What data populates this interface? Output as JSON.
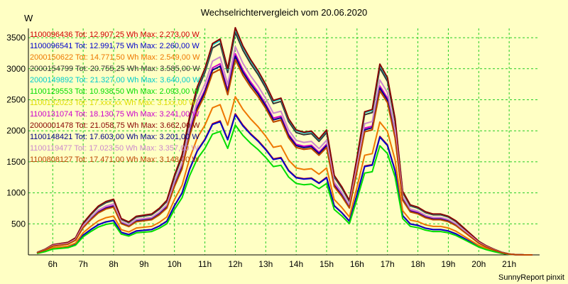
{
  "chart_data": {
    "type": "line",
    "title": "Wechselrichtervergleich vom 20.06.2020",
    "ylabel": "W",
    "footer": "SunnyReport pinxit",
    "ylim": [
      0,
      3650
    ],
    "xlim": [
      5.2,
      22.0
    ],
    "y_ticks": [
      500,
      1000,
      1500,
      2000,
      2500,
      3000,
      3500
    ],
    "x_ticks": [
      {
        "value": 6,
        "label": "6h"
      },
      {
        "value": 7,
        "label": "7h"
      },
      {
        "value": 8,
        "label": "8h"
      },
      {
        "value": 9,
        "label": "9h"
      },
      {
        "value": 10,
        "label": "10h"
      },
      {
        "value": 11,
        "label": "11h"
      },
      {
        "value": 12,
        "label": "12h"
      },
      {
        "value": 13,
        "label": "13h"
      },
      {
        "value": 14,
        "label": "14h"
      },
      {
        "value": 15,
        "label": "15h"
      },
      {
        "value": 16,
        "label": "16h"
      },
      {
        "value": 17,
        "label": "17h"
      },
      {
        "value": 18,
        "label": "18h"
      },
      {
        "value": 19,
        "label": "19h"
      },
      {
        "value": 20,
        "label": "20h"
      },
      {
        "value": 21,
        "label": "21h"
      }
    ],
    "grid": true,
    "legend_position": "top-left",
    "x": [
      5.5,
      5.75,
      6,
      6.25,
      6.5,
      6.75,
      7,
      7.25,
      7.5,
      7.75,
      8,
      8.25,
      8.5,
      8.75,
      9,
      9.25,
      9.5,
      9.75,
      10,
      10.25,
      10.5,
      10.75,
      11,
      11.25,
      11.5,
      11.75,
      12,
      12.25,
      12.5,
      12.75,
      13,
      13.25,
      13.5,
      13.75,
      14,
      14.25,
      14.5,
      14.75,
      15,
      15.25,
      15.5,
      15.75,
      16,
      16.25,
      16.5,
      16.75,
      17,
      17.25,
      17.5,
      17.75,
      18,
      18.25,
      18.5,
      18.75,
      19,
      19.25,
      19.5,
      19.75,
      20,
      20.25,
      20.5,
      20.75,
      21,
      21.25,
      21.5,
      21.75
    ],
    "reference_profile": [
      0.012,
      0.025,
      0.045,
      0.05,
      0.055,
      0.075,
      0.14,
      0.18,
      0.215,
      0.235,
      0.245,
      0.16,
      0.145,
      0.17,
      0.175,
      0.18,
      0.205,
      0.24,
      0.35,
      0.44,
      0.61,
      0.74,
      0.82,
      0.93,
      0.95,
      0.82,
      1.0,
      0.92,
      0.86,
      0.81,
      0.75,
      0.68,
      0.69,
      0.6,
      0.55,
      0.54,
      0.545,
      0.51,
      0.55,
      0.35,
      0.3,
      0.24,
      0.43,
      0.63,
      0.64,
      0.84,
      0.78,
      0.6,
      0.28,
      0.22,
      0.21,
      0.19,
      0.18,
      0.18,
      0.17,
      0.15,
      0.12,
      0.09,
      0.06,
      0.04,
      0.025,
      0.012,
      0.004,
      0.001,
      0.0,
      0.0
    ],
    "series": [
      {
        "name": "1100096436",
        "label": "1100096436 Tot: 12.907,25 Wh Max: 2.273,00 W",
        "color": "#cc0000",
        "peak": 2273
      },
      {
        "name": "1100096541",
        "label": "1100096541 Tot: 12.991,75 Wh Max: 2.260,00 W",
        "color": "#0000cc",
        "peak": 2260
      },
      {
        "name": "2000150622",
        "label": "2000150622 Tot: 14.771,50 Wh Max: 2.549,00 W",
        "color": "#ee7700",
        "peak": 2549
      },
      {
        "name": "2000154799",
        "label": "2000154799 Tot: 20.755,25 Wh Max: 3.585,00 W",
        "color": "#333333",
        "peak": 3585
      },
      {
        "name": "2000149892",
        "label": "2000149892 Tot: 21.327,00 Wh Max: 3.640,00 W",
        "color": "#00cccc",
        "peak": 3640
      },
      {
        "name": "1100129553",
        "label": "1100129553 Tot: 10.938,50 Wh Max: 2.093,00 W",
        "color": "#00dd00",
        "peak": 2093
      },
      {
        "name": "1100132023",
        "label": "1100132023 Tot: 17.xxx,xx Wh Max: 3.1xx,00 W",
        "color": "#dddd00",
        "peak": 3150
      },
      {
        "name": "1100131074",
        "label": "1100131074 Tot: 18.130,75 Wh Max: 3.241,00 W",
        "color": "#cc00cc",
        "peak": 3241
      },
      {
        "name": "2000001478",
        "label": "2000001478 Tot: 21.058,75 Wh Max: 3.662,00 W",
        "color": "#880000",
        "peak": 3662
      },
      {
        "name": "1100148421",
        "label": "1100148421 Tot: 17.603,00 Wh Max: 3.201,00 W",
        "color": "#000088",
        "peak": 3201
      },
      {
        "name": "1100119477",
        "label": "1100119477 Tot: 17.023,50 Wh Max: 3.357,00 W",
        "color": "#cc88cc",
        "peak": 3357
      },
      {
        "name": "1100808127",
        "label": "1100808127 Tot: 17.471,00 Wh Max: 3.148,00 W",
        "color": "#bb4400",
        "peak": 3148
      }
    ]
  }
}
